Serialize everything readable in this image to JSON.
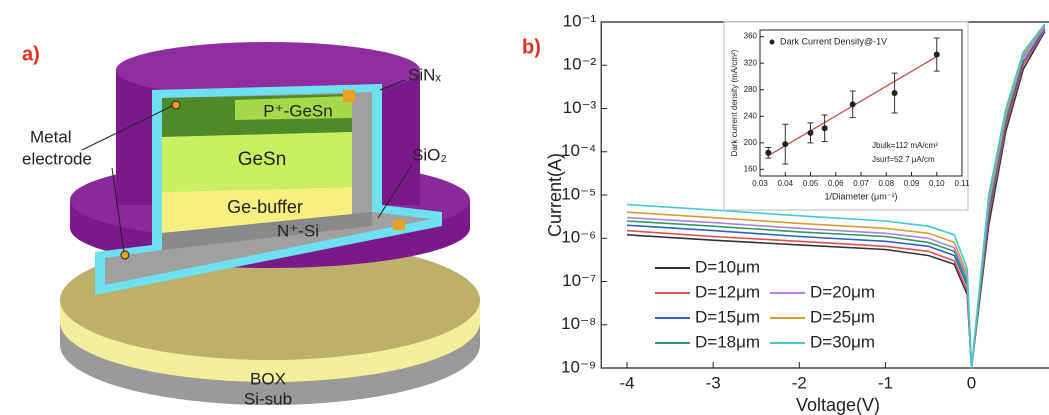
{
  "diagram": {
    "panel_label": "a)",
    "labels": {
      "metal": "Metal",
      "electrode": "electrode",
      "p_gesn": "P⁺-GeSn",
      "gesn": "GeSn",
      "ge_buffer": "Ge-buffer",
      "n_si": "N⁺-Si",
      "box": "BOX",
      "si_sub": "Si-sub",
      "sinx": "SiNₓ",
      "sio2": "SiO₂"
    }
  },
  "chart_data": [
    {
      "type": "line",
      "panel_label": "b)",
      "x_label": "Voltage(V)",
      "y_label": "Current(A)",
      "log_y": true,
      "legend": "lower left",
      "xlim": [
        -4.3,
        0.9
      ],
      "xticks": [
        -4,
        -3,
        -2,
        -1,
        0
      ],
      "ylim": [
        1e-09,
        0.1
      ],
      "yticks": [
        {
          "value": 1e-09,
          "label": "10⁻⁹"
        },
        {
          "value": 1e-08,
          "label": "10⁻⁸"
        },
        {
          "value": 1e-07,
          "label": "10⁻⁷"
        },
        {
          "value": 1e-06,
          "label": "10⁻⁶"
        },
        {
          "value": 1e-05,
          "label": "10⁻⁵"
        },
        {
          "value": 0.0001,
          "label": "10⁻⁴"
        },
        {
          "value": 0.001,
          "label": "10⁻³"
        },
        {
          "value": 0.01,
          "label": "10⁻²"
        },
        {
          "value": 0.1,
          "label": "10⁻¹"
        }
      ],
      "x": [
        -4,
        -3,
        -2,
        -1,
        -0.5,
        -0.2,
        -0.05,
        0,
        0.2,
        0.4,
        0.6,
        0.85
      ],
      "series": [
        {
          "name": "D=10μm",
          "color": "#333333",
          "values": [
            1.2e-06,
            9e-07,
            7e-07,
            5.5e-07,
            4e-07,
            2.5e-07,
            5e-08,
            1e-09,
            2e-06,
            0.0003,
            0.008,
            0.06
          ]
        },
        {
          "name": "D=12μm",
          "color": "#e05050",
          "values": [
            1.5e-06,
            1.1e-06,
            8.5e-07,
            6.5e-07,
            5e-07,
            3e-07,
            6e-08,
            1e-09,
            3e-06,
            0.0004,
            0.01,
            0.065
          ]
        },
        {
          "name": "D=15μm",
          "color": "#3060c0",
          "values": [
            2e-06,
            1.5e-06,
            1.1e-06,
            8.5e-07,
            6.5e-07,
            4e-07,
            8e-08,
            1e-09,
            4e-06,
            0.0005,
            0.012,
            0.07
          ]
        },
        {
          "name": "D=18μm",
          "color": "#2e9a60",
          "values": [
            2.5e-06,
            1.9e-06,
            1.4e-06,
            1.1e-06,
            8e-07,
            5e-07,
            1e-07,
            1e-09,
            5e-06,
            0.0006,
            0.015,
            0.08
          ]
        },
        {
          "name": "D=20μm",
          "color": "#b080e0",
          "values": [
            3e-06,
            2.3e-06,
            1.7e-06,
            1.3e-06,
            1e-06,
            6e-07,
            1.2e-07,
            1e-09,
            6e-06,
            0.0007,
            0.016,
            0.075
          ]
        },
        {
          "name": "D=25μm",
          "color": "#d4a030",
          "values": [
            4e-06,
            3e-06,
            2.2e-06,
            1.7e-06,
            1.3e-06,
            8e-07,
            1.5e-07,
            1e-09,
            8e-06,
            0.0008,
            0.018,
            0.085
          ]
        },
        {
          "name": "D=30μm",
          "color": "#40c8d8",
          "values": [
            6e-06,
            4.5e-06,
            3.3e-06,
            2.5e-06,
            1.9e-06,
            1.2e-06,
            2e-07,
            1e-09,
            1e-05,
            0.001,
            0.02,
            0.09
          ]
        }
      ]
    },
    {
      "type": "scatter",
      "x_label": "1/Diameter (μm⁻¹)",
      "y_label": "Dark current density (mA/cm²)",
      "legend_text": "Dark Current Density@-1V",
      "color": "#222222",
      "annotations": [
        "Jbulk=112 mA/cm²",
        "Jsurf=52.7 μA/cm"
      ],
      "xlim": [
        0.03,
        0.11
      ],
      "xticks": [
        0.03,
        0.04,
        0.05,
        0.06,
        0.07,
        0.08,
        0.09,
        {
          "value": 0.1,
          "label": "0.10"
        },
        0.11
      ],
      "ylim": [
        150,
        370
      ],
      "yticks": [
        160,
        200,
        240,
        280,
        320,
        360
      ],
      "x": [
        0.0333,
        0.04,
        0.05,
        0.0556,
        0.0667,
        0.0833,
        0.1
      ],
      "values": [
        185,
        198,
        215,
        222,
        258,
        275,
        333
      ],
      "errors": [
        8,
        30,
        15,
        20,
        20,
        30,
        25
      ],
      "fit": {
        "color": "#c0504d",
        "x": [
          0.033,
          0.1
        ],
        "values": [
          180,
          330
        ]
      }
    }
  ]
}
